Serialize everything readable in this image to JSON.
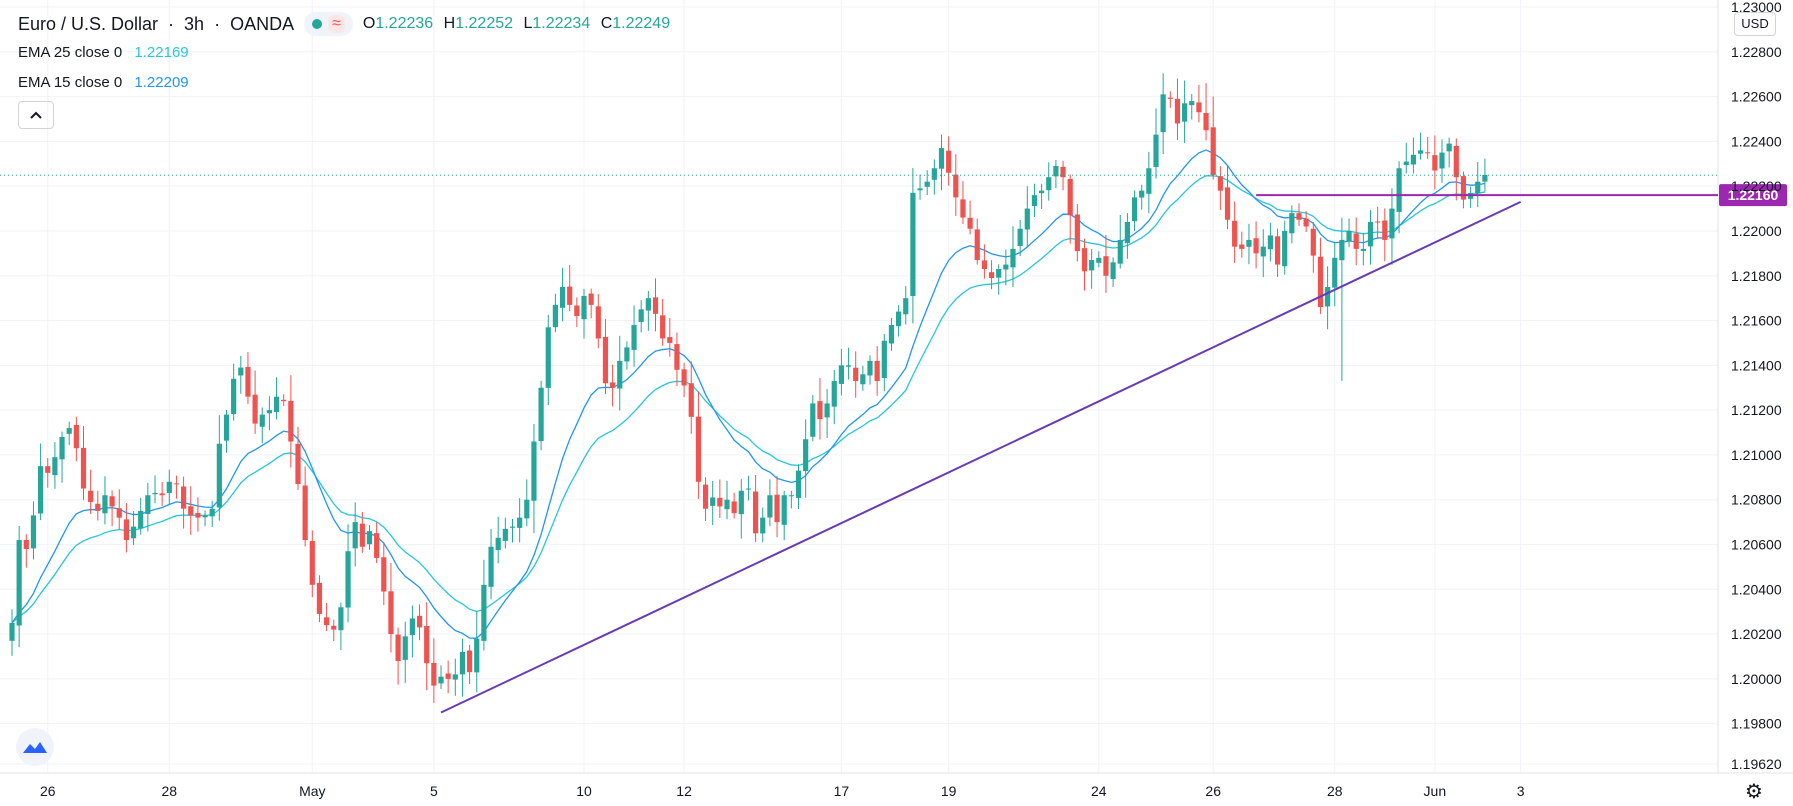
{
  "header": {
    "symbol": "Euro / U.S. Dollar",
    "sep1": "·",
    "interval": "3h",
    "sep2": "·",
    "broker": "OANDA",
    "wave_symbol": "≈",
    "ohlc": {
      "o_label": "O",
      "o": "1.22236",
      "h_label": "H",
      "h": "1.22252",
      "l_label": "L",
      "l": "1.22234",
      "c_label": "C",
      "c": "1.22249"
    }
  },
  "indicators": [
    {
      "label": "EMA 25 close 0",
      "value": "1.22169",
      "color": "#26c6da"
    },
    {
      "label": "EMA 15 close 0",
      "value": "1.22209",
      "color": "#2196f3"
    }
  ],
  "collapse_icon": "chevron-up-icon",
  "currency": "USD",
  "colors": {
    "up": "#26a69a",
    "down": "#ef5350",
    "trendline": "#673ab7",
    "price_line": "#26a69a"
  },
  "chart_data": {
    "type": "candlestick",
    "title": "Euro / U.S. Dollar · 3h · OANDA",
    "ylabel": "USD",
    "ylim": [
      1.1952,
      1.2302
    ],
    "y_ticks": [
      "1.23000",
      "1.22800",
      "1.22600",
      "1.22400",
      "1.22200",
      "1.22000",
      "1.21800",
      "1.21600",
      "1.21400",
      "1.21200",
      "1.21000",
      "1.20800",
      "1.20600",
      "1.20400",
      "1.20200",
      "1.20000",
      "1.19800",
      "1.19620"
    ],
    "x_ticks": [
      {
        "label": "26",
        "bar": 5
      },
      {
        "label": "28",
        "bar": 22
      },
      {
        "label": "May",
        "bar": 42
      },
      {
        "label": "5",
        "bar": 59
      },
      {
        "label": "10",
        "bar": 80
      },
      {
        "label": "12",
        "bar": 94
      },
      {
        "label": "17",
        "bar": 116
      },
      {
        "label": "19",
        "bar": 131
      },
      {
        "label": "24",
        "bar": 152
      },
      {
        "label": "26",
        "bar": 168
      },
      {
        "label": "28",
        "bar": 185
      },
      {
        "label": "Jun",
        "bar": 199
      },
      {
        "label": "3",
        "bar": 211
      }
    ],
    "last_price_label": "1.22160",
    "horizontal_line": {
      "price": 1.2216,
      "from_bar": 174,
      "to_bar": 224,
      "label": "1.22160"
    },
    "trendline": {
      "from_bar": 60,
      "from_price": 1.1985,
      "to_bar": 211,
      "to_price": 1.2213
    },
    "current_price_line": 1.22249,
    "closes": [
      1.2025,
      1.2062,
      1.2058,
      1.2073,
      1.2095,
      1.2092,
      1.2099,
      1.2108,
      1.2112,
      1.2103,
      1.2085,
      1.2079,
      1.2075,
      1.2082,
      1.2077,
      1.2072,
      1.2062,
      1.2068,
      1.2075,
      1.2082,
      1.2083,
      1.2082,
      1.2088,
      1.2087,
      1.2076,
      1.2073,
      1.2072,
      1.2073,
      1.2076,
      1.2105,
      1.2118,
      1.2134,
      1.2139,
      1.2126,
      1.2114,
      1.2118,
      1.212,
      1.2126,
      1.2124,
      1.2106,
      1.2087,
      1.2062,
      1.2042,
      1.2029,
      1.2024,
      1.2022,
      1.2032,
      1.2057,
      1.207,
      1.2059,
      1.2066,
      1.2054,
      1.2039,
      1.202,
      1.2008,
      1.2019,
      1.2027,
      1.2023,
      1.2007,
      1.1997,
      1.2001,
      1.2,
      1.2002,
      1.2012,
      1.2003,
      1.2018,
      1.2042,
      1.2059,
      1.2063,
      1.2067,
      1.2068,
      1.2072,
      1.208,
      1.2106,
      1.213,
      1.2157,
      1.2167,
      1.2175,
      1.2167,
      1.2162,
      1.2171,
      1.2167,
      1.2152,
      1.2132,
      1.213,
      1.2142,
      1.2148,
      1.2158,
      1.2165,
      1.217,
      1.2163,
      1.2152,
      1.215,
      1.2138,
      1.2131,
      1.2117,
      1.2088,
      1.2076,
      1.2081,
      1.2077,
      1.208,
      1.2074,
      1.2084,
      1.2085,
      1.2065,
      1.2072,
      1.2082,
      1.207,
      1.2082,
      1.2082,
      1.2093,
      1.2107,
      1.2123,
      1.2116,
      1.2123,
      1.2133,
      1.214,
      1.214,
      1.2133,
      1.2136,
      1.2142,
      1.2133,
      1.2151,
      1.2158,
      1.2164,
      1.217,
      1.2217,
      1.2219,
      1.2222,
      1.2228,
      1.2237,
      1.2226,
      1.2215,
      1.2206,
      1.2201,
      1.2187,
      1.2183,
      1.2179,
      1.2183,
      1.2185,
      1.2192,
      1.2201,
      1.221,
      1.2216,
      1.2218,
      1.2224,
      1.2229,
      1.2224,
      1.2207,
      1.2191,
      1.2182,
      1.2187,
      1.2188,
      1.218,
      1.2186,
      1.2196,
      1.2204,
      1.2215,
      1.2218,
      1.2228,
      1.2243,
      1.2261,
      1.2259,
      1.2248,
      1.2257,
      1.2258,
      1.2253,
      1.2245,
      1.2225,
      1.2218,
      1.2205,
      1.2193,
      1.2192,
      1.2196,
      1.219,
      1.2193,
      1.2198,
      1.2185,
      1.22,
      1.2208,
      1.2205,
      1.2202,
      1.2189,
      1.2166,
      1.2175,
      1.2188,
      1.2196,
      1.22,
      1.2192,
      1.2192,
      1.2204,
      1.2204,
      1.2196,
      1.221,
      1.2228,
      1.2231,
      1.2234,
      1.2236,
      1.2235,
      1.2227,
      1.2235,
      1.2239,
      1.2224,
      1.2214,
      1.2217,
      1.2222,
      1.2225
    ]
  }
}
